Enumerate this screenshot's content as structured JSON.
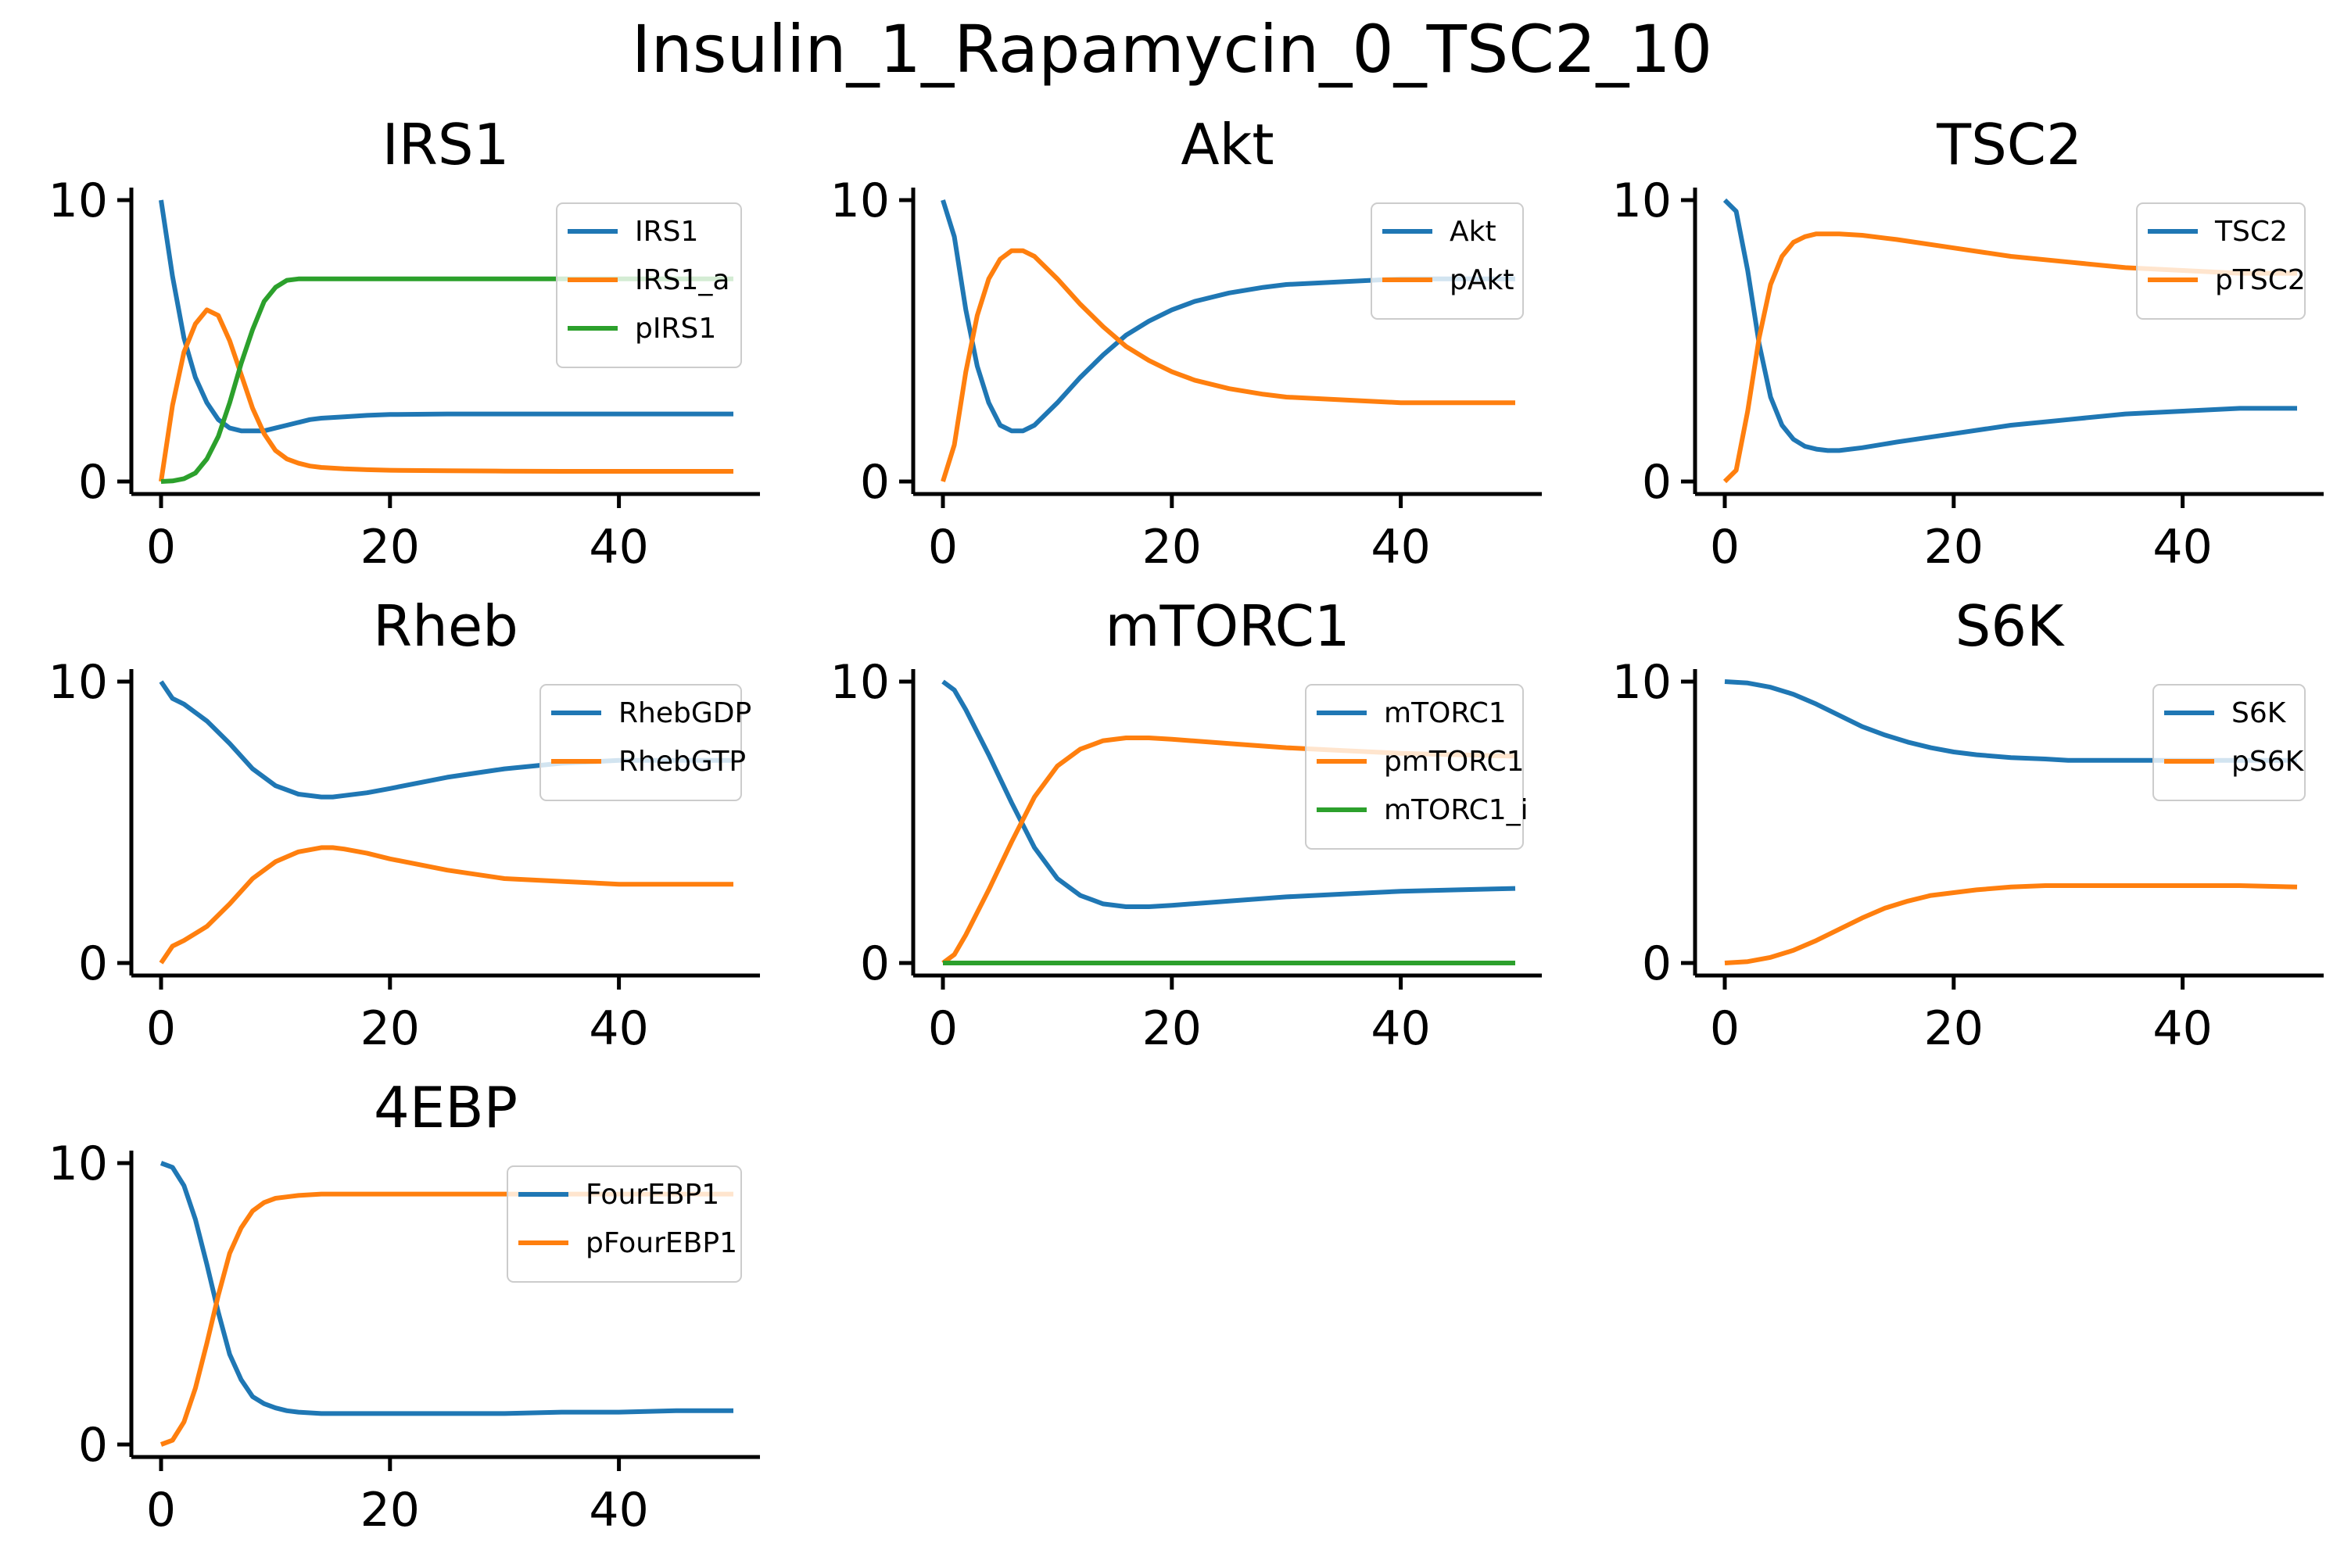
{
  "figure": {
    "title": "Insulin_1_Rapamycin_0_TSC2_10"
  },
  "colors": {
    "blue": "#1f77b4",
    "orange": "#ff7f0e",
    "green": "#2ca02c"
  },
  "chart_data": [
    {
      "type": "line",
      "title": "IRS1",
      "xlim": [
        0,
        50
      ],
      "ylim": [
        0,
        10
      ],
      "xticks": [
        0,
        20,
        40
      ],
      "yticks": [
        0,
        10
      ],
      "grid": false,
      "legend": "top-right",
      "x": [
        0,
        1,
        2,
        3,
        4,
        5,
        6,
        7,
        8,
        9,
        10,
        11,
        12,
        13,
        14,
        16,
        18,
        20,
        25,
        30,
        35,
        40,
        45,
        50
      ],
      "series": [
        {
          "name": "IRS1",
          "color": "#1f77b4",
          "values": [
            10.0,
            7.3,
            5.1,
            3.7,
            2.8,
            2.2,
            1.9,
            1.8,
            1.8,
            1.8,
            1.9,
            2.0,
            2.1,
            2.2,
            2.25,
            2.3,
            2.35,
            2.38,
            2.4,
            2.4,
            2.4,
            2.4,
            2.4,
            2.4
          ]
        },
        {
          "name": "IRS1_a",
          "color": "#ff7f0e",
          "values": [
            0.0,
            2.7,
            4.6,
            5.6,
            6.1,
            5.9,
            5.0,
            3.8,
            2.6,
            1.7,
            1.1,
            0.8,
            0.65,
            0.55,
            0.5,
            0.45,
            0.42,
            0.4,
            0.38,
            0.37,
            0.36,
            0.36,
            0.36,
            0.36
          ]
        },
        {
          "name": "pIRS1",
          "color": "#2ca02c",
          "values": [
            0.0,
            0.02,
            0.1,
            0.3,
            0.8,
            1.6,
            2.8,
            4.2,
            5.4,
            6.4,
            6.9,
            7.15,
            7.2,
            7.2,
            7.2,
            7.2,
            7.2,
            7.2,
            7.2,
            7.2,
            7.2,
            7.2,
            7.2,
            7.2
          ]
        }
      ]
    },
    {
      "type": "line",
      "title": "Akt",
      "xlim": [
        0,
        50
      ],
      "ylim": [
        0,
        10
      ],
      "xticks": [
        0,
        20,
        40
      ],
      "yticks": [
        0,
        10
      ],
      "grid": false,
      "legend": "top-right",
      "x": [
        0,
        1,
        2,
        3,
        4,
        5,
        6,
        7,
        8,
        10,
        12,
        14,
        16,
        18,
        20,
        22,
        25,
        28,
        30,
        35,
        40,
        45,
        50
      ],
      "series": [
        {
          "name": "Akt",
          "color": "#1f77b4",
          "values": [
            10.0,
            8.7,
            6.1,
            4.1,
            2.8,
            2.0,
            1.8,
            1.8,
            2.0,
            2.8,
            3.7,
            4.5,
            5.2,
            5.7,
            6.1,
            6.4,
            6.7,
            6.9,
            7.0,
            7.1,
            7.2,
            7.2,
            7.2
          ]
        },
        {
          "name": "pAkt",
          "color": "#ff7f0e",
          "values": [
            0.0,
            1.3,
            3.9,
            5.9,
            7.2,
            7.9,
            8.2,
            8.2,
            8.0,
            7.2,
            6.3,
            5.5,
            4.8,
            4.3,
            3.9,
            3.6,
            3.3,
            3.1,
            3.0,
            2.9,
            2.8,
            2.8,
            2.8
          ]
        }
      ]
    },
    {
      "type": "line",
      "title": "TSC2",
      "xlim": [
        0,
        50
      ],
      "ylim": [
        0,
        10
      ],
      "xticks": [
        0,
        20,
        40
      ],
      "yticks": [
        0,
        10
      ],
      "grid": false,
      "legend": "top-right",
      "x": [
        0,
        1,
        2,
        3,
        4,
        5,
        6,
        7,
        8,
        9,
        10,
        12,
        15,
        20,
        25,
        30,
        35,
        40,
        45,
        50
      ],
      "series": [
        {
          "name": "TSC2",
          "color": "#1f77b4",
          "values": [
            10.0,
            9.6,
            7.5,
            4.9,
            3.0,
            2.0,
            1.5,
            1.25,
            1.15,
            1.1,
            1.1,
            1.2,
            1.4,
            1.7,
            2.0,
            2.2,
            2.4,
            2.5,
            2.6,
            2.6
          ]
        },
        {
          "name": "pTSC2",
          "color": "#ff7f0e",
          "values": [
            0.0,
            0.4,
            2.5,
            5.1,
            7.0,
            8.0,
            8.5,
            8.7,
            8.8,
            8.8,
            8.8,
            8.75,
            8.6,
            8.3,
            8.0,
            7.8,
            7.6,
            7.5,
            7.4,
            7.4
          ]
        }
      ]
    },
    {
      "type": "line",
      "title": "Rheb",
      "xlim": [
        0,
        50
      ],
      "ylim": [
        0,
        10
      ],
      "xticks": [
        0,
        20,
        40
      ],
      "yticks": [
        0,
        10
      ],
      "grid": false,
      "legend": "top-right",
      "x": [
        0,
        1,
        2,
        4,
        6,
        8,
        10,
        12,
        14,
        15,
        16,
        18,
        20,
        25,
        30,
        35,
        40,
        45,
        50
      ],
      "series": [
        {
          "name": "RhebGDP",
          "color": "#1f77b4",
          "values": [
            10.0,
            9.4,
            9.2,
            8.6,
            7.8,
            6.9,
            6.3,
            6.0,
            5.9,
            5.9,
            5.95,
            6.05,
            6.2,
            6.6,
            6.9,
            7.1,
            7.2,
            7.2,
            7.2
          ]
        },
        {
          "name": "RhebGTP",
          "color": "#ff7f0e",
          "values": [
            0.0,
            0.6,
            0.8,
            1.3,
            2.1,
            3.0,
            3.6,
            3.95,
            4.1,
            4.1,
            4.05,
            3.9,
            3.7,
            3.3,
            3.0,
            2.9,
            2.8,
            2.8,
            2.8
          ]
        }
      ]
    },
    {
      "type": "line",
      "title": "mTORC1",
      "xlim": [
        0,
        50
      ],
      "ylim": [
        0,
        10
      ],
      "xticks": [
        0,
        20,
        40
      ],
      "yticks": [
        0,
        10
      ],
      "grid": false,
      "legend": "top-right",
      "x": [
        0,
        1,
        2,
        4,
        6,
        8,
        10,
        12,
        14,
        16,
        18,
        20,
        25,
        30,
        35,
        40,
        45,
        50
      ],
      "series": [
        {
          "name": "mTORC1",
          "color": "#1f77b4",
          "values": [
            10.0,
            9.7,
            9.0,
            7.4,
            5.7,
            4.1,
            3.0,
            2.4,
            2.1,
            2.0,
            2.0,
            2.05,
            2.2,
            2.35,
            2.45,
            2.55,
            2.6,
            2.65
          ]
        },
        {
          "name": "pmTORC1",
          "color": "#ff7f0e",
          "values": [
            0.0,
            0.3,
            1.0,
            2.6,
            4.3,
            5.9,
            7.0,
            7.6,
            7.9,
            8.0,
            8.0,
            7.95,
            7.8,
            7.65,
            7.55,
            7.45,
            7.4,
            7.35
          ]
        },
        {
          "name": "mTORC1_i",
          "color": "#2ca02c",
          "values": [
            0,
            0,
            0,
            0,
            0,
            0,
            0,
            0,
            0,
            0,
            0,
            0,
            0,
            0,
            0,
            0,
            0,
            0
          ]
        }
      ]
    },
    {
      "type": "line",
      "title": "S6K",
      "xlim": [
        0,
        50
      ],
      "ylim": [
        0,
        10
      ],
      "xticks": [
        0,
        20,
        40
      ],
      "yticks": [
        0,
        10
      ],
      "grid": false,
      "legend": "top-right",
      "x": [
        0,
        2,
        4,
        6,
        8,
        10,
        12,
        14,
        16,
        18,
        20,
        22,
        25,
        28,
        30,
        35,
        40,
        45,
        50
      ],
      "series": [
        {
          "name": "S6K",
          "color": "#1f77b4",
          "values": [
            10.0,
            9.95,
            9.8,
            9.55,
            9.2,
            8.8,
            8.4,
            8.1,
            7.85,
            7.65,
            7.5,
            7.4,
            7.3,
            7.25,
            7.2,
            7.2,
            7.2,
            7.2,
            7.2
          ]
        },
        {
          "name": "pS6K",
          "color": "#ff7f0e",
          "values": [
            0.0,
            0.05,
            0.2,
            0.45,
            0.8,
            1.2,
            1.6,
            1.95,
            2.2,
            2.4,
            2.5,
            2.6,
            2.7,
            2.75,
            2.75,
            2.75,
            2.75,
            2.75,
            2.7
          ]
        }
      ]
    },
    {
      "type": "line",
      "title": "4EBP",
      "xlim": [
        0,
        50
      ],
      "ylim": [
        0,
        10
      ],
      "xticks": [
        0,
        20,
        40
      ],
      "yticks": [
        0,
        10
      ],
      "grid": false,
      "legend": "top-right",
      "x": [
        0,
        1,
        2,
        3,
        4,
        5,
        6,
        7,
        8,
        9,
        10,
        11,
        12,
        14,
        16,
        18,
        20,
        25,
        30,
        35,
        40,
        45,
        50
      ],
      "series": [
        {
          "name": "FourEBP1",
          "color": "#1f77b4",
          "values": [
            10.0,
            9.85,
            9.2,
            8.0,
            6.4,
            4.7,
            3.2,
            2.3,
            1.7,
            1.45,
            1.3,
            1.2,
            1.15,
            1.1,
            1.1,
            1.1,
            1.1,
            1.1,
            1.1,
            1.15,
            1.15,
            1.2,
            1.2
          ]
        },
        {
          "name": "pFourEBP1",
          "color": "#ff7f0e",
          "values": [
            0.0,
            0.15,
            0.8,
            2.0,
            3.6,
            5.3,
            6.8,
            7.7,
            8.3,
            8.6,
            8.75,
            8.8,
            8.85,
            8.9,
            8.9,
            8.9,
            8.9,
            8.9,
            8.9,
            8.9,
            8.9,
            8.9,
            8.9
          ]
        }
      ]
    }
  ]
}
